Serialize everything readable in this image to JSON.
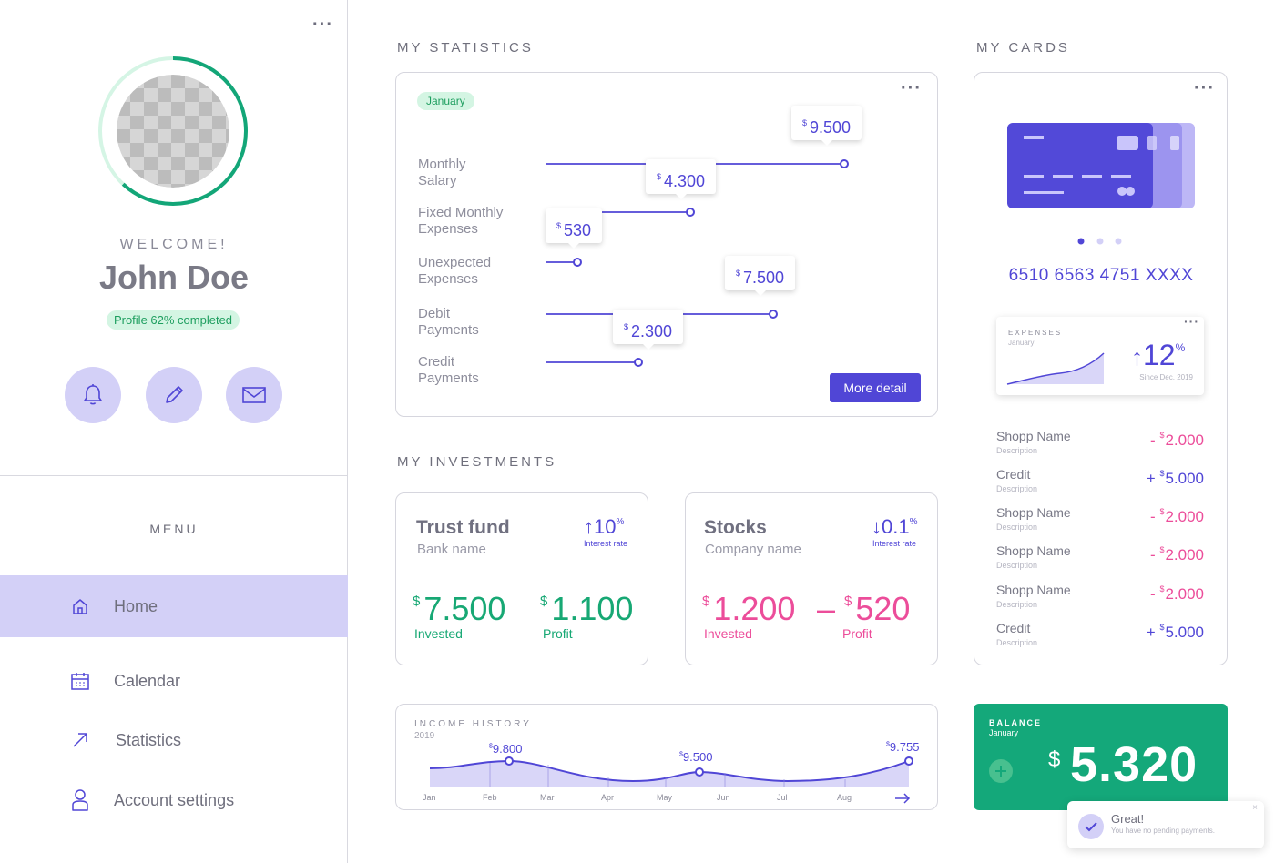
{
  "sidebar": {
    "welcome": "WELCOME!",
    "user_name": "John Doe",
    "profile_status": "Profile 62% completed",
    "profile_progress": 0.62,
    "menu_title": "MENU",
    "menu_items": [
      {
        "label": "Home",
        "icon": "home-icon",
        "active": true
      },
      {
        "label": "Calendar",
        "icon": "calendar-icon",
        "active": false
      },
      {
        "label": "Statistics",
        "icon": "arrow-up-right-icon",
        "active": false
      },
      {
        "label": "Account settings",
        "icon": "user-icon",
        "active": false
      }
    ],
    "action_icons": [
      "bell-icon",
      "pencil-icon",
      "mail-icon"
    ]
  },
  "statistics": {
    "title": "MY STATISTICS",
    "month": "January",
    "rows": [
      {
        "label_line1": "Monthly",
        "label_line2": "Salary",
        "currency": "$",
        "value": "9.500",
        "amount": 9500
      },
      {
        "label_line1": "Fixed Monthly",
        "label_line2": "Expenses",
        "currency": "$",
        "value": "4.300",
        "amount": 4300
      },
      {
        "label_line1": "Unexpected",
        "label_line2": "Expenses",
        "currency": "$",
        "value": "530",
        "amount": 530
      },
      {
        "label_line1": "Debit",
        "label_line2": "Payments",
        "currency": "$",
        "value": "7.500",
        "amount": 7500
      },
      {
        "label_line1": "Credit",
        "label_line2": "Payments",
        "currency": "$",
        "value": "2.300",
        "amount": 2300
      }
    ],
    "more_button": "More detail"
  },
  "investments": {
    "title": "MY INVESTMENTS",
    "items": [
      {
        "name": "Trust fund",
        "sub": "Bank name",
        "rate_arrow": "↑",
        "rate": "10",
        "rate_unit": "%",
        "rate_label": "Interest rate",
        "invested_currency": "$",
        "invested": "7.500",
        "invested_label": "Invested",
        "profit_prefix": "",
        "profit_currency": "$",
        "profit": "1.100",
        "profit_label": "Profit"
      },
      {
        "name": "Stocks",
        "sub": "Company name",
        "rate_arrow": "↓",
        "rate": "0.1",
        "rate_unit": "%",
        "rate_label": "Interest rate",
        "invested_currency": "$",
        "invested": "1.200",
        "invested_label": "Invested",
        "profit_prefix": "–",
        "profit_currency": "$",
        "profit": "520",
        "profit_label": "Profit"
      }
    ]
  },
  "income": {
    "title": "INCOME HISTORY",
    "year": "2019",
    "months": [
      "Jan",
      "Feb",
      "Mar",
      "Apr",
      "May",
      "Jun",
      "Jul",
      "Aug"
    ],
    "highlights": [
      {
        "label": "$",
        "value": "9.800"
      },
      {
        "label": "$",
        "value": "9.500"
      },
      {
        "label": "$",
        "value": "9.755"
      }
    ],
    "arrow_icon": "arrow-right-icon"
  },
  "cards": {
    "title": "MY CARDS",
    "card_number": "6510 6563 4751 XXXX",
    "expenses_title": "EXPENSES",
    "expenses_month": "January",
    "expenses_arrow": "↑",
    "expenses_value": "12",
    "expenses_unit": "%",
    "expenses_since": "Since Dec. 2019",
    "transactions": [
      {
        "name": "Shopp Name",
        "desc": "Description",
        "sign": "-",
        "currency": "$",
        "amount": "2.000",
        "type": "debit"
      },
      {
        "name": "Credit",
        "desc": "Description",
        "sign": "+",
        "currency": "$",
        "amount": "5.000",
        "type": "credit"
      },
      {
        "name": "Shopp Name",
        "desc": "Description",
        "sign": "-",
        "currency": "$",
        "amount": "2.000",
        "type": "debit"
      },
      {
        "name": "Shopp Name",
        "desc": "Description",
        "sign": "-",
        "currency": "$",
        "amount": "2.000",
        "type": "debit"
      },
      {
        "name": "Shopp Name",
        "desc": "Description",
        "sign": "-",
        "currency": "$",
        "amount": "2.000",
        "type": "debit"
      },
      {
        "name": "Credit",
        "desc": "Description",
        "sign": "+",
        "currency": "$",
        "amount": "5.000",
        "type": "credit"
      }
    ]
  },
  "balance": {
    "title": "BALANCE",
    "month": "January",
    "currency": "$",
    "value": "5.320"
  },
  "toast": {
    "title": "Great!",
    "message": "You have no pending payments."
  },
  "colors": {
    "accent": "#5046d6",
    "accent_light": "#d3d0f7",
    "green": "#17a874",
    "pink": "#ec4d9a",
    "balance_bg": "#14a87a"
  }
}
